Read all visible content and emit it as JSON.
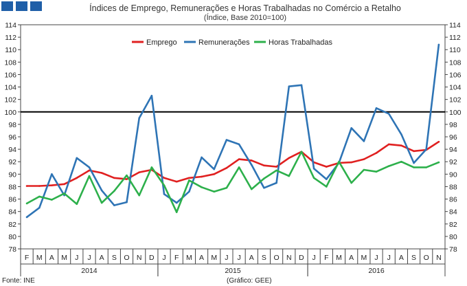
{
  "header_squares_color": "#1f5fa8",
  "chart_data": {
    "type": "line",
    "title": "Índices de Emprego, Remunerações e Horas Trabalhadas no Comércio a Retalho",
    "subtitle": "(Índice, Base 2010=100)",
    "months": [
      "F",
      "M",
      "A",
      "M",
      "J",
      "J",
      "A",
      "S",
      "O",
      "N",
      "D",
      "J",
      "F",
      "M",
      "A",
      "M",
      "J",
      "J",
      "A",
      "S",
      "O",
      "N",
      "D",
      "J",
      "F",
      "M",
      "A",
      "M",
      "J",
      "J",
      "A",
      "S",
      "O",
      "N"
    ],
    "years": [
      {
        "label": "2014",
        "first_index": 0,
        "last_index": 10
      },
      {
        "label": "2015",
        "first_index": 11,
        "last_index": 22
      },
      {
        "label": "2016",
        "first_index": 23,
        "last_index": 33
      }
    ],
    "ylim": [
      78,
      114
    ],
    "yticks": [
      78,
      80,
      82,
      84,
      86,
      88,
      90,
      92,
      94,
      96,
      98,
      100,
      102,
      104,
      106,
      108,
      110,
      112,
      114
    ],
    "reference_line": 100,
    "series": [
      {
        "name": "Emprego",
        "color": "#e02020",
        "values": [
          88.1,
          88.1,
          88.2,
          88.4,
          89.4,
          90.6,
          90.2,
          89.4,
          89.2,
          90.3,
          90.7,
          89.4,
          88.8,
          89.4,
          89.6,
          90.0,
          91.0,
          92.4,
          92.2,
          91.4,
          91.2,
          92.6,
          93.6,
          91.9,
          91.2,
          91.8,
          91.9,
          92.4,
          93.4,
          94.8,
          94.6,
          93.7,
          93.9,
          95.2
        ]
      },
      {
        "name": "Remunerações",
        "color": "#2e74b5",
        "values": [
          83.1,
          84.6,
          90.0,
          86.6,
          92.6,
          91.1,
          87.4,
          85.0,
          85.5,
          99.0,
          102.6,
          86.8,
          85.4,
          87.2,
          92.7,
          90.8,
          95.5,
          94.8,
          91.5,
          87.8,
          88.6,
          104.1,
          104.3,
          90.9,
          89.2,
          91.8,
          97.4,
          95.3,
          100.6,
          99.7,
          96.4,
          91.8,
          94.0,
          110.8
        ]
      },
      {
        "name": "Horas Trabalhadas",
        "color": "#2db04b",
        "values": [
          85.3,
          86.4,
          85.9,
          86.9,
          85.2,
          89.7,
          85.4,
          87.3,
          89.8,
          86.6,
          91.1,
          88.2,
          83.9,
          89.0,
          87.9,
          87.2,
          87.8,
          91.1,
          87.6,
          89.3,
          90.6,
          89.7,
          93.6,
          89.4,
          88.0,
          92.0,
          88.6,
          90.7,
          90.4,
          91.3,
          92.0,
          91.1,
          91.1,
          91.9
        ]
      }
    ]
  },
  "footer": {
    "source": "Fonte: INE",
    "credit": "(Gráfico: GEE)"
  }
}
